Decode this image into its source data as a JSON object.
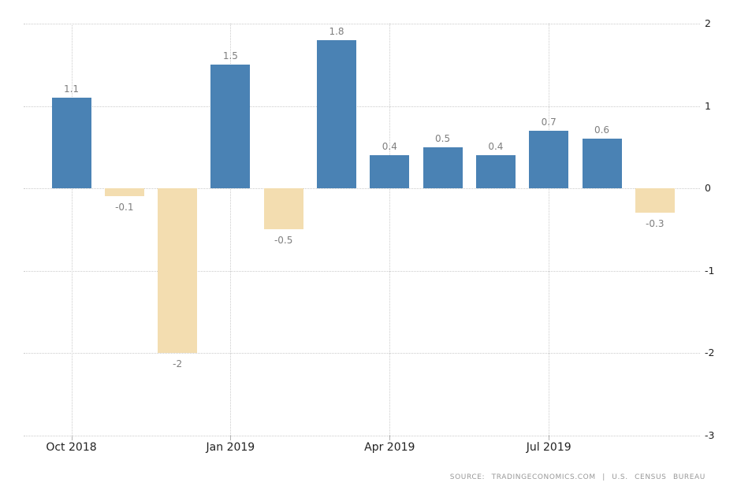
{
  "chart_data": {
    "type": "bar",
    "title": "",
    "values": [
      1.1,
      -0.1,
      -2,
      1.5,
      -0.5,
      1.8,
      0.4,
      0.5,
      0.4,
      0.7,
      0.6,
      -0.3
    ],
    "value_labels": [
      "1.1",
      "-0.1",
      "-2",
      "1.5",
      "-0.5",
      "1.8",
      "0.4",
      "0.5",
      "0.4",
      "0.7",
      "0.6",
      "-0.3"
    ],
    "x_ticks": [
      {
        "label": "Oct 2018",
        "bar_index": 0
      },
      {
        "label": "Jan 2019",
        "bar_index": 3
      },
      {
        "label": "Apr 2019",
        "bar_index": 6
      },
      {
        "label": "Jul 2019",
        "bar_index": 9
      }
    ],
    "y_ticks": [
      2,
      1,
      0,
      -1,
      -2,
      -3
    ],
    "ylim": [
      -3,
      2
    ],
    "grid": "dotted",
    "legend_position": "none",
    "colors": {
      "positive_bar": "#4a82b4",
      "negative_bar": "#f3ddb0",
      "value_label": "#7f7f7f",
      "axis_label": "#222222",
      "gridline": "#cccccc",
      "source_text": "#999999"
    }
  },
  "footer": {
    "source_text": "SOURCE: TRADINGECONOMICS.COM | U.S. CENSUS BUREAU"
  }
}
